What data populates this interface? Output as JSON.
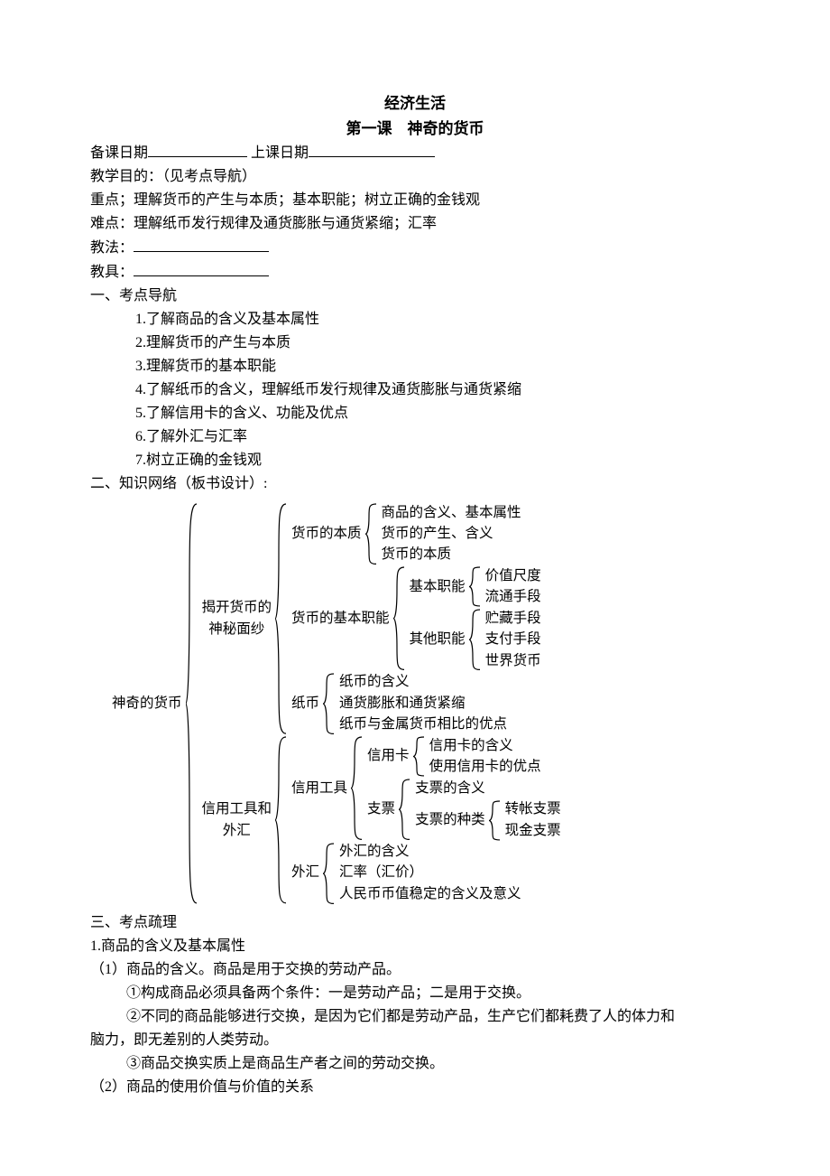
{
  "title1": "经济生活",
  "title2": "第一课　神奇的货币",
  "l_date_prep": "备课日期",
  "l_date_teach": "上课日期",
  "l_goal": "教学目的：（见考点导航）",
  "l_key": "重点；理解货币的产生与本质；基本职能；树立正确的金钱观",
  "l_hard": "难点：理解纸币发行规律及通货膨胀与通货紧缩；汇率",
  "l_method": "教法：",
  "l_aid": "教具：",
  "s1_head": "一、考点导航",
  "s1_items": [
    "1.了解商品的含义及基本属性",
    "2.理解货币的产生与本质",
    "3.理解货币的基本职能",
    "4.了解纸币的含义，理解纸币发行规律及通货膨胀与通货紧缩",
    "5.了解信用卡的含义、功能及优点",
    "6.了解外汇与汇率",
    "7.树立正确的金钱观"
  ],
  "s2_head": "二、知识网络（板书设计）:",
  "diagram": {
    "brace_stroke": "#000000",
    "brace_width": 1.2,
    "root": "神奇的货币",
    "A": {
      "label1": "揭开货币的",
      "label2": "神秘面纱",
      "a1": {
        "label": "货币的本质",
        "items": [
          "商品的含义、基本属性",
          "货币的产生、含义"
        ],
        "tail": {
          "label": "货币的本质"
        }
      },
      "a2": {
        "label": "货币的基本职能",
        "g1": {
          "label": "基本职能",
          "items": [
            "价值尺度",
            "流通手段"
          ]
        },
        "g2": {
          "label": "其他职能",
          "items": [
            "贮藏手段",
            "支付手段",
            "世界货币"
          ]
        }
      },
      "a3": {
        "label": "纸币",
        "items": [
          "纸币的含义",
          "通货膨胀和通货紧缩",
          "纸币与金属货币相比的优点"
        ]
      }
    },
    "B": {
      "label1": "信用工具和",
      "label2": "外汇",
      "b1": {
        "label": "信用工具",
        "g1": {
          "label": "信用卡",
          "items": [
            "信用卡的含义",
            "使用信用卡的优点"
          ]
        },
        "g2": {
          "label": "支票",
          "item1": "支票的含义",
          "sub": {
            "label": "支票的种类",
            "items": [
              "转帐支票",
              "现金支票"
            ]
          }
        }
      },
      "b2": {
        "label": "外汇",
        "items": [
          "外汇的含义",
          "汇率（汇价）",
          "人民币币值稳定的含义及意义"
        ]
      }
    }
  },
  "s3_head": "三、考点疏理",
  "s3_h1": "1.商品的含义及基本属性",
  "s3_p1": "（1）商品的含义。商品是用于交换的劳动产品。",
  "s3_p2": "①构成商品必须具备两个条件：一是劳动产品；二是用于交换。",
  "s3_p3a": "②不同的商品能够进行交换，是因为它们都是劳动产品，生产它们都耗费了人的体力和",
  "s3_p3b": "脑力，即无差别的人类劳动。",
  "s3_p4": "③商品交换实质上是商品生产者之间的劳动交换。",
  "s3_p5": "（2）商品的使用价值与价值的关系"
}
